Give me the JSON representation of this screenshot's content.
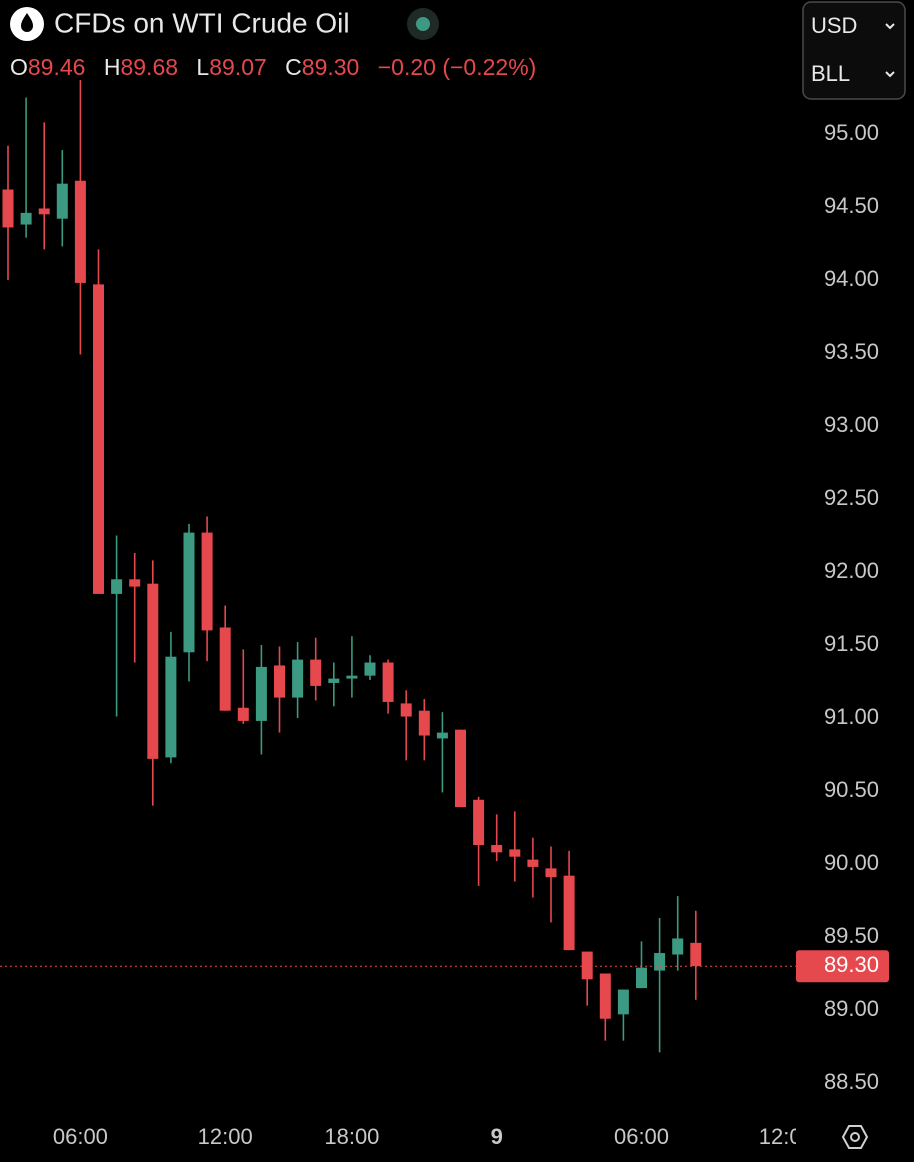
{
  "header": {
    "title": "CFDs on WTI Crude Oil",
    "ohlc": [
      {
        "key": "O",
        "value": "89.46"
      },
      {
        "key": "H",
        "value": "89.68"
      },
      {
        "key": "L",
        "value": "89.07"
      },
      {
        "key": "C",
        "value": "89.30"
      }
    ],
    "change": "−0.20 (−0.22%)",
    "currency": "USD",
    "unit": "BLL"
  },
  "chart_data": {
    "type": "candlestick",
    "categories": [
      null,
      null,
      null,
      null,
      "06:00",
      null,
      null,
      null,
      null,
      null,
      null,
      null,
      "12:00",
      null,
      null,
      null,
      null,
      null,
      null,
      "18:00",
      null,
      null,
      null,
      null,
      null,
      null,
      null,
      "9",
      null,
      null,
      null,
      null,
      null,
      null,
      null,
      "06:00",
      null,
      null,
      null,
      null,
      null,
      null,
      null,
      "12:00"
    ],
    "open": [
      94.62,
      94.38,
      94.49,
      94.42,
      94.68,
      93.97,
      91.85,
      91.95,
      91.92,
      90.73,
      91.45,
      92.27,
      91.62,
      91.07,
      90.98,
      91.36,
      91.14,
      91.4,
      91.24,
      91.27,
      91.29,
      91.38,
      91.1,
      91.05,
      90.86,
      90.92,
      90.44,
      90.13,
      90.1,
      90.03,
      89.97,
      89.92,
      89.4,
      89.25,
      88.97,
      89.15,
      89.27,
      89.38,
      89.46,
      null,
      null,
      null,
      null,
      null
    ],
    "high": [
      94.92,
      95.25,
      95.08,
      94.89,
      95.37,
      94.21,
      92.25,
      92.13,
      92.08,
      91.59,
      92.33,
      92.38,
      91.77,
      91.47,
      91.5,
      91.49,
      91.52,
      91.55,
      91.38,
      91.56,
      91.43,
      91.4,
      91.19,
      91.13,
      91.04,
      90.92,
      90.46,
      90.34,
      90.36,
      90.18,
      90.12,
      90.09,
      89.4,
      89.25,
      89.14,
      89.47,
      89.63,
      89.78,
      89.68,
      null,
      null,
      null,
      null,
      null
    ],
    "low": [
      94.0,
      94.29,
      94.21,
      94.23,
      93.49,
      91.85,
      91.01,
      91.38,
      90.4,
      90.69,
      91.25,
      91.39,
      91.05,
      90.96,
      90.75,
      90.9,
      91.0,
      91.12,
      91.08,
      91.14,
      91.26,
      91.03,
      90.71,
      90.71,
      90.49,
      90.39,
      89.85,
      90.02,
      89.88,
      89.77,
      89.6,
      89.41,
      89.03,
      88.79,
      88.79,
      89.15,
      88.71,
      89.27,
      89.07,
      null,
      null,
      null,
      null,
      null
    ],
    "close": [
      94.36,
      94.46,
      94.45,
      94.66,
      93.98,
      91.85,
      91.95,
      91.9,
      90.72,
      91.42,
      92.27,
      91.6,
      91.05,
      90.98,
      91.35,
      91.14,
      91.4,
      91.22,
      91.27,
      91.29,
      91.38,
      91.11,
      91.01,
      90.88,
      90.9,
      90.39,
      90.13,
      90.08,
      90.05,
      89.98,
      89.91,
      89.41,
      89.21,
      88.94,
      89.14,
      89.29,
      89.39,
      89.49,
      89.3,
      null,
      null,
      null,
      null,
      null
    ],
    "up_color": "#3d9a82",
    "down_color": "#e5484d",
    "last_price": {
      "value": 89.3,
      "label": "89.30"
    },
    "ylim": [
      88.315,
      95.37
    ],
    "yticks": [
      {
        "value": 88.5,
        "label": "88.50"
      },
      {
        "value": 89,
        "label": "89.00"
      },
      {
        "value": 89.5,
        "label": "89.50"
      },
      {
        "value": 90,
        "label": "90.00"
      },
      {
        "value": 90.5,
        "label": "90.50"
      },
      {
        "value": 91,
        "label": "91.00"
      },
      {
        "value": 91.5,
        "label": "91.50"
      },
      {
        "value": 92,
        "label": "92.00"
      },
      {
        "value": 92.5,
        "label": "92.50"
      },
      {
        "value": 93,
        "label": "93.00"
      },
      {
        "value": 93.5,
        "label": "93.50"
      },
      {
        "value": 94,
        "label": "94.00"
      },
      {
        "value": 94.5,
        "label": "94.50"
      },
      {
        "value": 95,
        "label": "95.00"
      }
    ]
  }
}
